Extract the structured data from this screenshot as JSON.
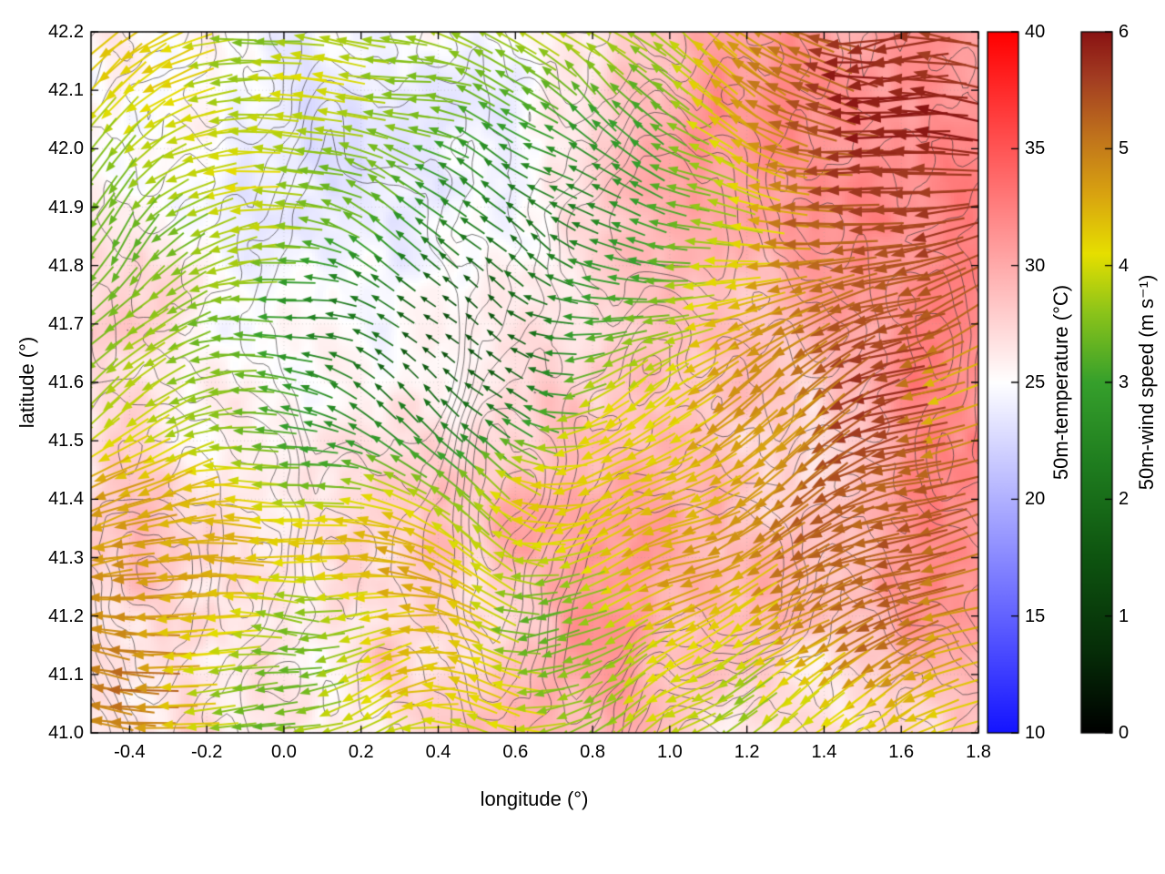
{
  "chart_data": {
    "type": "heatmap",
    "subtype": "temperature field with overlaid wind vectors and terrain contour lines",
    "title": "",
    "xlabel": "longitude (°)",
    "ylabel": "latitude (°)",
    "xlim": [
      -0.5,
      1.8
    ],
    "ylim": [
      41.0,
      42.2
    ],
    "xticks": [
      -0.4,
      -0.2,
      0.0,
      0.2,
      0.4,
      0.6,
      0.8,
      1.0,
      1.2,
      1.4,
      1.6,
      1.8
    ],
    "xtick_labels": [
      "-0.4",
      "-0.2",
      "0.0",
      "0.2",
      "0.4",
      "0.6",
      "0.8",
      "1.0",
      "1.2",
      "1.4",
      "1.6",
      "1.8"
    ],
    "yticks": [
      41.0,
      41.1,
      41.2,
      41.3,
      41.4,
      41.5,
      41.6,
      41.7,
      41.8,
      41.9,
      42.0,
      42.1,
      42.2
    ],
    "ytick_labels": [
      "41.0",
      "41.1",
      "41.2",
      "41.3",
      "41.4",
      "41.5",
      "41.6",
      "41.7",
      "41.8",
      "41.9",
      "42.0",
      "42.1",
      "42.2"
    ],
    "grid": true,
    "legend_position": "none",
    "colorbars": [
      {
        "id": "temperature",
        "label": "50m-temperature (°C)",
        "min": 10,
        "max": 40,
        "ticks": [
          10,
          15,
          20,
          25,
          30,
          35,
          40
        ],
        "tick_labels": [
          "10",
          "15",
          "20",
          "25",
          "30",
          "35",
          "40"
        ],
        "stops": [
          {
            "v": 10,
            "c": "#1414ff"
          },
          {
            "v": 25,
            "c": "#ffffff"
          },
          {
            "v": 40,
            "c": "#ff0000"
          }
        ]
      },
      {
        "id": "wind-speed",
        "label": "50m-wind speed (m s⁻¹)",
        "min": 0,
        "max": 6,
        "ticks": [
          0,
          1,
          2,
          3,
          4,
          5,
          6
        ],
        "tick_labels": [
          "0",
          "1",
          "2",
          "3",
          "4",
          "5",
          "6"
        ],
        "stops": [
          {
            "v": 0.0,
            "c": "#000000"
          },
          {
            "v": 0.7,
            "c": "#062d08"
          },
          {
            "v": 1.5,
            "c": "#0e5410"
          },
          {
            "v": 2.3,
            "c": "#1f7d1f"
          },
          {
            "v": 3.0,
            "c": "#36a02c"
          },
          {
            "v": 3.6,
            "c": "#8cc41a"
          },
          {
            "v": 4.1,
            "c": "#e6df00"
          },
          {
            "v": 4.6,
            "c": "#d9a410"
          },
          {
            "v": 5.1,
            "c": "#c0731c"
          },
          {
            "v": 5.6,
            "c": "#a33d22"
          },
          {
            "v": 6.0,
            "c": "#8a1313"
          }
        ]
      }
    ],
    "features": {
      "temperature_pattern": "field mostly 24–33 °C (white to pink-red); strong warm red areas in the northeast quadrant, along the east edge and in the south-center around (0.9, 41.25); pale blue-lavender cool patches (~22–24 °C) in the north-center and northwest",
      "wind_pattern": "vectors point predominantly westward (easterly flow); calm dark-green region (~1–3 m/s) with short arrows in the center around (0.4, 41.6); moderate yellow/orange flow (~4–5 m/s) on the west side and south; strongest long dark-red arrows (~5–6 m/s) in the northeast and along the east edge and southwest cluster near (0.1, 41.3)",
      "contours": "thin dark irregular terrain/height contour lines overlaid across the whole map, densest in the south-center"
    }
  }
}
